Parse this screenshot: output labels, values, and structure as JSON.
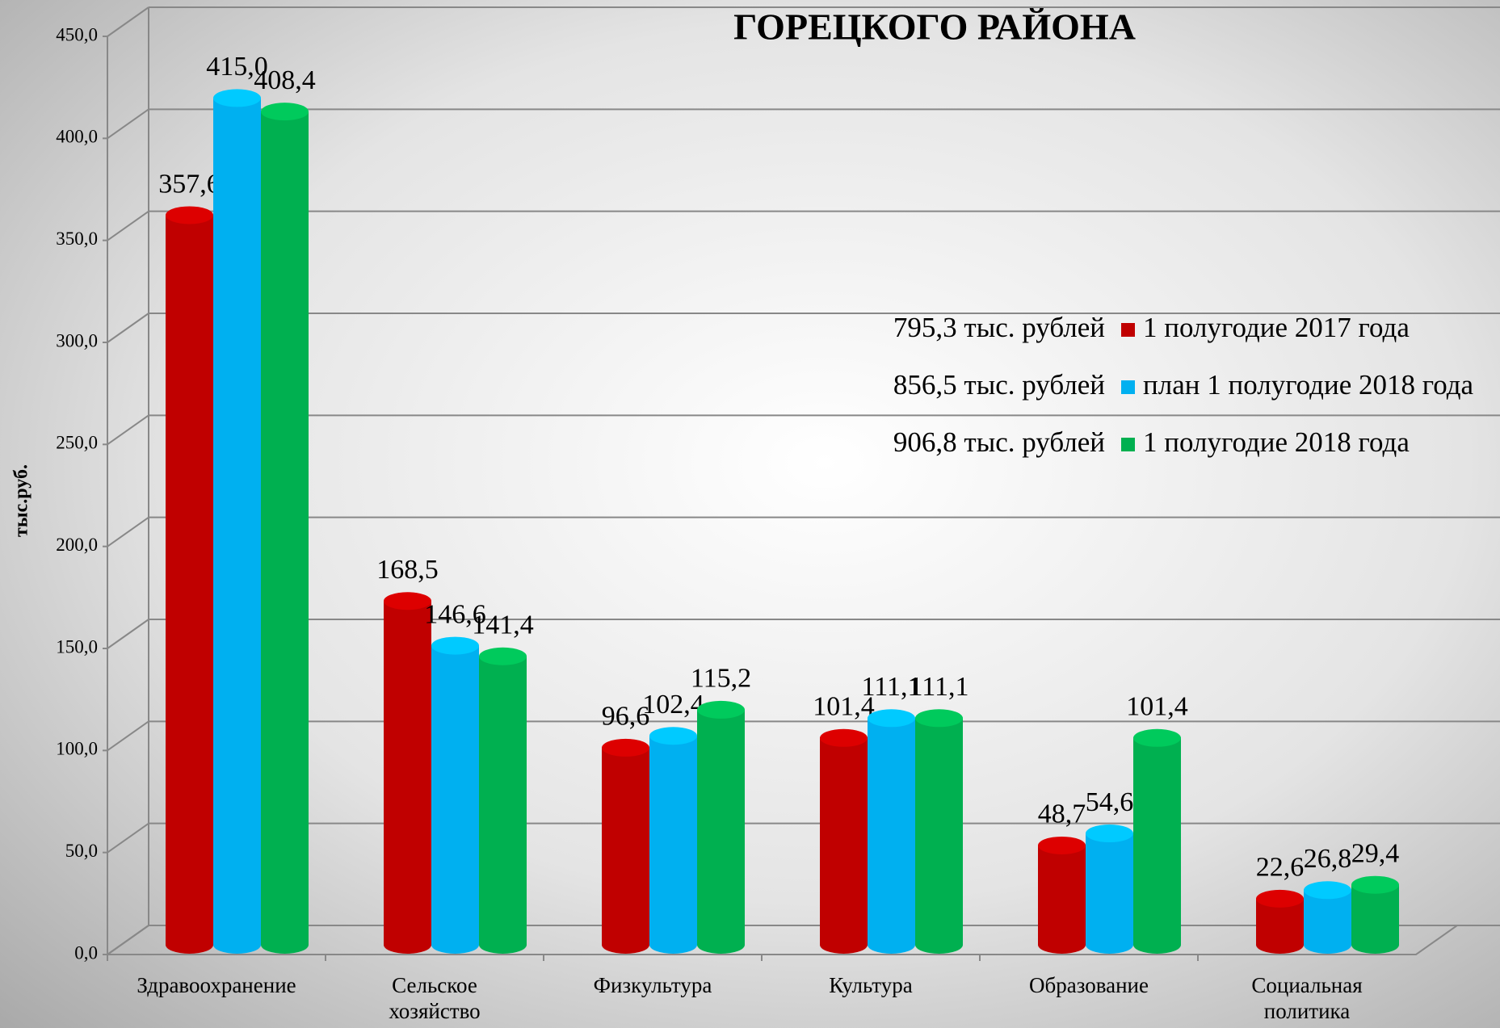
{
  "chart_data": {
    "type": "bar3d",
    "title": "ГОРЕЦКОГО РАЙОНА",
    "y_label": "тыс.руб.",
    "categories": [
      "Здравоохранение",
      "Сельское хозяйство",
      "Физкультура",
      "Культура",
      "Образование",
      "Социальная политика"
    ],
    "series": [
      {
        "name": "1 полугодие 2017 года",
        "note": "795,3 тыс. рублей",
        "color": "#c00000",
        "values": [
          357.6,
          168.5,
          96.6,
          101.4,
          48.7,
          22.6
        ],
        "value_labels": [
          "357,6",
          "168,5",
          "96,6",
          "101,4",
          "48,7",
          "22,6"
        ]
      },
      {
        "name": "план 1 полугодие 2018 года",
        "note": "856,5 тыс. рублей",
        "color": "#00b0f0",
        "values": [
          415.0,
          146.6,
          102.4,
          111.1,
          54.6,
          26.8
        ],
        "value_labels": [
          "415,0",
          "146,6",
          "102,4",
          "111,1",
          "54,6",
          "26,8"
        ]
      },
      {
        "name": "1 полугодие 2018 года",
        "note": "906,8 тыс. рублей",
        "color": "#00b050",
        "values": [
          408.4,
          141.4,
          115.2,
          111.1,
          101.4,
          29.4
        ],
        "value_labels": [
          "408,4",
          "141,4",
          "115,2",
          "111,1",
          "101,4",
          "29,4"
        ]
      }
    ],
    "ylim": [
      0,
      450
    ],
    "yticks": [
      {
        "value": 0,
        "label": "0,0"
      },
      {
        "value": 50,
        "label": "50,0"
      },
      {
        "value": 100,
        "label": "100,0"
      },
      {
        "value": 150,
        "label": "150,0"
      },
      {
        "value": 200,
        "label": "200,0"
      },
      {
        "value": 250,
        "label": "250,0"
      },
      {
        "value": 300,
        "label": "300,0"
      },
      {
        "value": 350,
        "label": "350,0"
      },
      {
        "value": 400,
        "label": "400,0"
      },
      {
        "value": 450,
        "label": "450,0"
      }
    ],
    "grid": true
  }
}
